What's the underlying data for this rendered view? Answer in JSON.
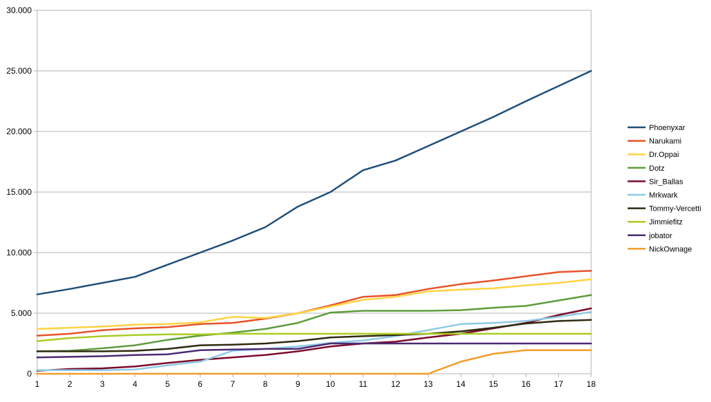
{
  "chart_data": {
    "type": "line",
    "title": "",
    "xlabel": "",
    "ylabel": "",
    "x": [
      1,
      2,
      3,
      4,
      5,
      6,
      7,
      8,
      9,
      10,
      11,
      12,
      13,
      14,
      15,
      16,
      17,
      18
    ],
    "ylim": [
      0,
      30000
    ],
    "yticks": [
      0,
      5000,
      10000,
      15000,
      20000,
      25000,
      30000
    ],
    "ytick_labels": [
      "0",
      "5.000",
      "10.000",
      "15.000",
      "20.000",
      "25.000",
      "30.000"
    ],
    "grid": true,
    "legend_position": "right",
    "series": [
      {
        "name": "Phoenyxar",
        "color": "#1f4e79",
        "values": [
          6550,
          7000,
          7500,
          8000,
          9000,
          10000,
          11000,
          12100,
          13800,
          15000,
          16800,
          17600,
          18800,
          20000,
          21200,
          22500,
          23750,
          25000
        ]
      },
      {
        "name": "Narukami",
        "color": "#e8522a",
        "values": [
          3150,
          3300,
          3600,
          3750,
          3850,
          4100,
          4200,
          4550,
          5000,
          5650,
          6350,
          6500,
          7000,
          7400,
          7700,
          8050,
          8400,
          8500
        ]
      },
      {
        "name": "Dr.Oppai",
        "color": "#ffd33f",
        "values": [
          3700,
          3800,
          3900,
          4050,
          4100,
          4250,
          4700,
          4600,
          5000,
          5550,
          6100,
          6350,
          6800,
          6950,
          7050,
          7300,
          7500,
          7800
        ]
      },
      {
        "name": "Dotz",
        "color": "#5c9c3a",
        "values": [
          1850,
          1900,
          2100,
          2350,
          2800,
          3150,
          3400,
          3700,
          4200,
          5050,
          5200,
          5200,
          5200,
          5250,
          5450,
          5600,
          6050,
          6500
        ]
      },
      {
        "name": "Sir_Ballas",
        "color": "#7b0a2a",
        "values": [
          250,
          400,
          450,
          600,
          900,
          1150,
          1350,
          1550,
          1850,
          2250,
          2500,
          2650,
          3000,
          3300,
          3750,
          4200,
          4850,
          5400
        ]
      },
      {
        "name": "Mrkwark",
        "color": "#8ecae6",
        "values": [
          300,
          300,
          300,
          350,
          700,
          1000,
          1900,
          2050,
          2250,
          2550,
          2750,
          3100,
          3600,
          4100,
          4200,
          4350,
          4700,
          5100
        ]
      },
      {
        "name": "Tommy-Vercetti",
        "color": "#2f2a10",
        "values": [
          1850,
          1850,
          1850,
          1900,
          2050,
          2350,
          2400,
          2500,
          2700,
          3000,
          3100,
          3200,
          3300,
          3500,
          3800,
          4150,
          4350,
          4450
        ]
      },
      {
        "name": "Jimmiefitz",
        "color": "#aacc22",
        "values": [
          2700,
          2950,
          3100,
          3200,
          3250,
          3250,
          3300,
          3300,
          3300,
          3300,
          3300,
          3300,
          3300,
          3300,
          3300,
          3300,
          3300,
          3300
        ]
      },
      {
        "name": "jobator",
        "color": "#4b2a73",
        "values": [
          1350,
          1400,
          1450,
          1550,
          1600,
          1950,
          2000,
          2050,
          2050,
          2500,
          2500,
          2500,
          2500,
          2500,
          2500,
          2500,
          2500,
          2500
        ]
      },
      {
        "name": "NickOwnage",
        "color": "#f39c2a",
        "values": [
          0,
          0,
          0,
          0,
          0,
          0,
          0,
          0,
          0,
          0,
          0,
          0,
          0,
          1000,
          1650,
          1950,
          1950,
          1950
        ]
      }
    ]
  }
}
